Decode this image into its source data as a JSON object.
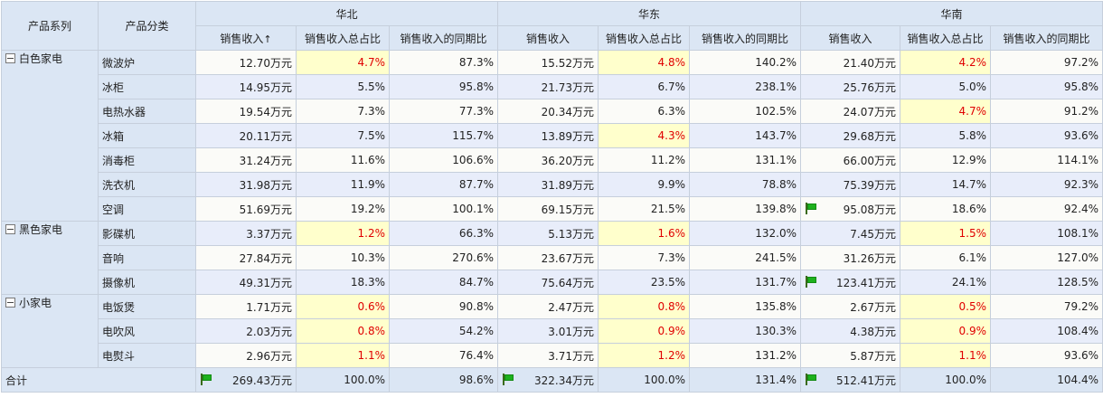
{
  "headers": {
    "series": "产品系列",
    "category": "产品分类",
    "regions": [
      "华北",
      "华东",
      "华南"
    ],
    "metrics": [
      "销售收入",
      "销售收入总占比",
      "销售收入的同期比"
    ],
    "sort_arrow": "↑"
  },
  "groups": [
    {
      "name": "白色家电",
      "rows": [
        {
          "category": "微波炉",
          "cells": [
            {
              "v": "12.70万元"
            },
            {
              "v": "4.7%",
              "hl": true
            },
            {
              "v": "87.3%"
            },
            {
              "v": "15.52万元"
            },
            {
              "v": "4.8%",
              "hl": true
            },
            {
              "v": "140.2%"
            },
            {
              "v": "21.40万元"
            },
            {
              "v": "4.2%",
              "hl": true
            },
            {
              "v": "97.2%"
            }
          ]
        },
        {
          "category": "冰柜",
          "cells": [
            {
              "v": "14.95万元"
            },
            {
              "v": "5.5%"
            },
            {
              "v": "95.8%"
            },
            {
              "v": "21.73万元"
            },
            {
              "v": "6.7%"
            },
            {
              "v": "238.1%"
            },
            {
              "v": "25.76万元"
            },
            {
              "v": "5.0%"
            },
            {
              "v": "95.8%"
            }
          ]
        },
        {
          "category": "电热水器",
          "cells": [
            {
              "v": "19.54万元"
            },
            {
              "v": "7.3%"
            },
            {
              "v": "77.3%"
            },
            {
              "v": "20.34万元"
            },
            {
              "v": "6.3%"
            },
            {
              "v": "102.5%"
            },
            {
              "v": "24.07万元"
            },
            {
              "v": "4.7%",
              "hl": true
            },
            {
              "v": "91.2%"
            }
          ]
        },
        {
          "category": "冰箱",
          "cells": [
            {
              "v": "20.11万元"
            },
            {
              "v": "7.5%"
            },
            {
              "v": "115.7%"
            },
            {
              "v": "13.89万元"
            },
            {
              "v": "4.3%",
              "hl": true
            },
            {
              "v": "143.7%"
            },
            {
              "v": "29.68万元"
            },
            {
              "v": "5.8%"
            },
            {
              "v": "93.6%"
            }
          ]
        },
        {
          "category": "消毒柜",
          "cells": [
            {
              "v": "31.24万元"
            },
            {
              "v": "11.6%"
            },
            {
              "v": "106.6%"
            },
            {
              "v": "36.20万元"
            },
            {
              "v": "11.2%"
            },
            {
              "v": "131.1%"
            },
            {
              "v": "66.00万元"
            },
            {
              "v": "12.9%"
            },
            {
              "v": "114.1%"
            }
          ]
        },
        {
          "category": "洗衣机",
          "cells": [
            {
              "v": "31.98万元"
            },
            {
              "v": "11.9%"
            },
            {
              "v": "87.7%"
            },
            {
              "v": "31.89万元"
            },
            {
              "v": "9.9%"
            },
            {
              "v": "78.8%"
            },
            {
              "v": "75.39万元"
            },
            {
              "v": "14.7%"
            },
            {
              "v": "92.3%"
            }
          ]
        },
        {
          "category": "空调",
          "cells": [
            {
              "v": "51.69万元"
            },
            {
              "v": "19.2%"
            },
            {
              "v": "100.1%"
            },
            {
              "v": "69.15万元"
            },
            {
              "v": "21.5%"
            },
            {
              "v": "139.8%"
            },
            {
              "v": "95.08万元",
              "flag": true
            },
            {
              "v": "18.6%"
            },
            {
              "v": "92.4%"
            }
          ]
        }
      ]
    },
    {
      "name": "黑色家电",
      "rows": [
        {
          "category": "影碟机",
          "cells": [
            {
              "v": "3.37万元"
            },
            {
              "v": "1.2%",
              "hl": true
            },
            {
              "v": "66.3%"
            },
            {
              "v": "5.13万元"
            },
            {
              "v": "1.6%",
              "hl": true
            },
            {
              "v": "132.0%"
            },
            {
              "v": "7.45万元"
            },
            {
              "v": "1.5%",
              "hl": true
            },
            {
              "v": "108.1%"
            }
          ]
        },
        {
          "category": "音响",
          "cells": [
            {
              "v": "27.84万元"
            },
            {
              "v": "10.3%"
            },
            {
              "v": "270.6%"
            },
            {
              "v": "23.67万元"
            },
            {
              "v": "7.3%"
            },
            {
              "v": "241.5%"
            },
            {
              "v": "31.26万元"
            },
            {
              "v": "6.1%"
            },
            {
              "v": "127.0%"
            }
          ]
        },
        {
          "category": "摄像机",
          "cells": [
            {
              "v": "49.31万元"
            },
            {
              "v": "18.3%"
            },
            {
              "v": "84.7%"
            },
            {
              "v": "75.64万元"
            },
            {
              "v": "23.5%"
            },
            {
              "v": "131.7%"
            },
            {
              "v": "123.41万元",
              "flag": true
            },
            {
              "v": "24.1%"
            },
            {
              "v": "128.5%"
            }
          ]
        }
      ]
    },
    {
      "name": "小家电",
      "rows": [
        {
          "category": "电饭煲",
          "cells": [
            {
              "v": "1.71万元"
            },
            {
              "v": "0.6%",
              "hl": true
            },
            {
              "v": "90.8%"
            },
            {
              "v": "2.47万元"
            },
            {
              "v": "0.8%",
              "hl": true
            },
            {
              "v": "135.8%"
            },
            {
              "v": "2.67万元"
            },
            {
              "v": "0.5%",
              "hl": true
            },
            {
              "v": "79.2%"
            }
          ]
        },
        {
          "category": "电吹风",
          "cells": [
            {
              "v": "2.03万元"
            },
            {
              "v": "0.8%",
              "hl": true
            },
            {
              "v": "54.2%"
            },
            {
              "v": "3.01万元"
            },
            {
              "v": "0.9%",
              "hl": true
            },
            {
              "v": "130.3%"
            },
            {
              "v": "4.38万元"
            },
            {
              "v": "0.9%",
              "hl": true
            },
            {
              "v": "108.4%"
            }
          ]
        },
        {
          "category": "电熨斗",
          "cells": [
            {
              "v": "2.96万元"
            },
            {
              "v": "1.1%",
              "hl": true
            },
            {
              "v": "76.4%"
            },
            {
              "v": "3.71万元"
            },
            {
              "v": "1.2%",
              "hl": true
            },
            {
              "v": "131.2%"
            },
            {
              "v": "5.87万元"
            },
            {
              "v": "1.1%",
              "hl": true
            },
            {
              "v": "93.6%"
            }
          ]
        }
      ]
    }
  ],
  "total": {
    "label": "合计",
    "cells": [
      {
        "v": "269.43万元",
        "flag": true
      },
      {
        "v": "100.0%"
      },
      {
        "v": "98.6%"
      },
      {
        "v": "322.34万元",
        "flag": true
      },
      {
        "v": "100.0%"
      },
      {
        "v": "131.4%"
      },
      {
        "v": "512.41万元",
        "flag": true
      },
      {
        "v": "100.0%"
      },
      {
        "v": "104.4%"
      }
    ]
  },
  "colors": {
    "header_bg": "#dbe6f4",
    "row_odd": "#fbfbf8",
    "row_even": "#e8edfa",
    "highlight_bg": "#ffffcc",
    "highlight_text": "#e00000",
    "flag_green": "#1db11d"
  },
  "icons": {
    "collapse": "collapse-toggle-icon",
    "flag": "green-flag-icon"
  }
}
